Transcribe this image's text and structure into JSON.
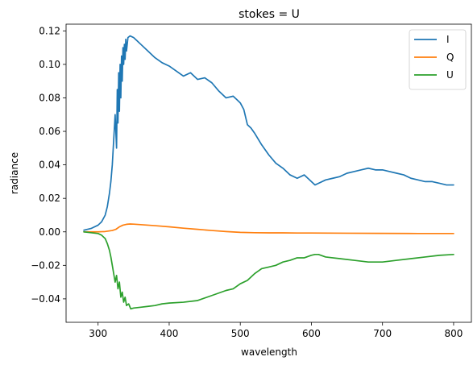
{
  "chart_data": {
    "type": "line",
    "title": "stokes = U",
    "xlabel": "wavelength",
    "ylabel": "radiance",
    "xlim": [
      255,
      825
    ],
    "ylim": [
      -0.054,
      0.124
    ],
    "xticks": [
      300,
      400,
      500,
      600,
      700,
      800
    ],
    "yticks": [
      -0.04,
      -0.02,
      0.0,
      0.02,
      0.04,
      0.06,
      0.08,
      0.1,
      0.12
    ],
    "ytick_labels": [
      "−0.04",
      "−0.02",
      "0.00",
      "0.02",
      "0.04",
      "0.06",
      "0.08",
      "0.10",
      "0.12"
    ],
    "grid": false,
    "legend_position": "top-right",
    "series": [
      {
        "name": "I",
        "color": "#1f77b4",
        "x": [
          280,
          290,
          300,
          305,
          310,
          313,
          316,
          318,
          320,
          322,
          324,
          326,
          327,
          328,
          329,
          330,
          331,
          332,
          333,
          334,
          335,
          336,
          337,
          338,
          339,
          340,
          342,
          345,
          350,
          355,
          360,
          370,
          380,
          390,
          400,
          410,
          420,
          430,
          440,
          450,
          460,
          470,
          480,
          490,
          495,
          500,
          505,
          510,
          515,
          520,
          530,
          540,
          550,
          560,
          570,
          580,
          590,
          600,
          605,
          610,
          620,
          630,
          640,
          650,
          660,
          670,
          680,
          690,
          700,
          710,
          720,
          730,
          740,
          750,
          760,
          770,
          780,
          790,
          800
        ],
        "y": [
          0.001,
          0.002,
          0.004,
          0.006,
          0.01,
          0.015,
          0.023,
          0.03,
          0.04,
          0.055,
          0.07,
          0.05,
          0.085,
          0.065,
          0.095,
          0.072,
          0.1,
          0.08,
          0.105,
          0.09,
          0.11,
          0.1,
          0.112,
          0.103,
          0.115,
          0.108,
          0.116,
          0.117,
          0.116,
          0.114,
          0.112,
          0.108,
          0.104,
          0.101,
          0.099,
          0.096,
          0.093,
          0.095,
          0.091,
          0.092,
          0.089,
          0.084,
          0.08,
          0.081,
          0.079,
          0.077,
          0.073,
          0.064,
          0.062,
          0.059,
          0.052,
          0.046,
          0.041,
          0.038,
          0.034,
          0.032,
          0.034,
          0.03,
          0.028,
          0.029,
          0.031,
          0.032,
          0.033,
          0.035,
          0.036,
          0.037,
          0.038,
          0.037,
          0.037,
          0.036,
          0.035,
          0.034,
          0.032,
          0.031,
          0.03,
          0.03,
          0.029,
          0.028,
          0.028
        ]
      },
      {
        "name": "Q",
        "color": "#ff7f0e",
        "x": [
          280,
          300,
          310,
          320,
          325,
          330,
          335,
          340,
          345,
          350,
          360,
          380,
          400,
          420,
          440,
          460,
          480,
          500,
          520,
          540,
          560,
          580,
          600,
          650,
          700,
          750,
          800
        ],
        "y": [
          0.0,
          0.0,
          0.0002,
          0.0008,
          0.0015,
          0.003,
          0.004,
          0.0045,
          0.0047,
          0.0046,
          0.0043,
          0.0037,
          0.003,
          0.0022,
          0.0015,
          0.0008,
          0.0002,
          -0.0003,
          -0.0005,
          -0.0006,
          -0.0006,
          -0.0007,
          -0.0007,
          -0.0008,
          -0.0009,
          -0.001,
          -0.001
        ]
      },
      {
        "name": "U",
        "color": "#2ca02c",
        "x": [
          280,
          290,
          300,
          305,
          310,
          313,
          316,
          318,
          320,
          322,
          324,
          326,
          328,
          330,
          332,
          334,
          336,
          338,
          340,
          343,
          346,
          350,
          360,
          370,
          380,
          390,
          400,
          420,
          440,
          460,
          470,
          480,
          490,
          500,
          510,
          520,
          530,
          540,
          550,
          560,
          570,
          580,
          590,
          600,
          605,
          610,
          620,
          640,
          660,
          680,
          700,
          720,
          740,
          760,
          780,
          800
        ],
        "y": [
          0.0,
          -0.0005,
          -0.001,
          -0.002,
          -0.004,
          -0.007,
          -0.011,
          -0.015,
          -0.02,
          -0.025,
          -0.03,
          -0.026,
          -0.034,
          -0.03,
          -0.039,
          -0.036,
          -0.042,
          -0.039,
          -0.044,
          -0.043,
          -0.046,
          -0.0455,
          -0.045,
          -0.0445,
          -0.044,
          -0.043,
          -0.0425,
          -0.042,
          -0.041,
          -0.038,
          -0.0365,
          -0.035,
          -0.034,
          -0.031,
          -0.029,
          -0.025,
          -0.022,
          -0.021,
          -0.02,
          -0.018,
          -0.017,
          -0.0155,
          -0.0155,
          -0.014,
          -0.0135,
          -0.0135,
          -0.015,
          -0.016,
          -0.017,
          -0.018,
          -0.018,
          -0.017,
          -0.016,
          -0.015,
          -0.014,
          -0.0135
        ]
      }
    ]
  }
}
